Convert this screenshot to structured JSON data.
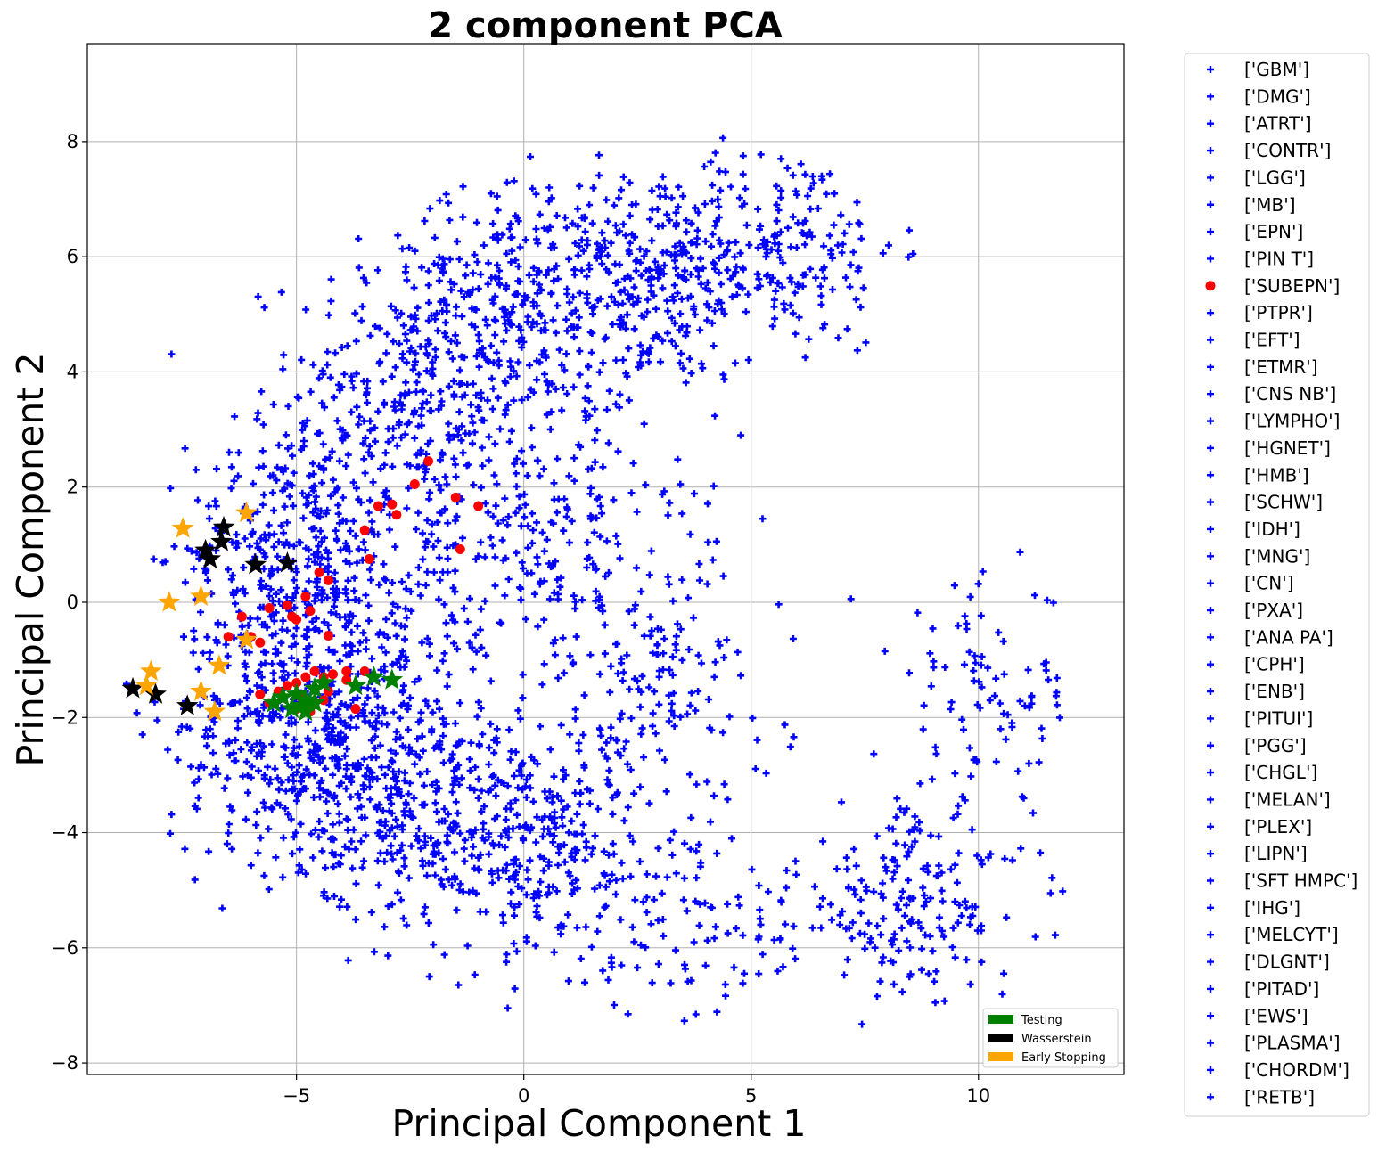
{
  "chart_data": {
    "type": "scatter",
    "title": "2 component PCA",
    "xlabel": "Principal Component 1",
    "ylabel": "Principal Component 2",
    "xlim": [
      -9.6,
      13.2
    ],
    "ylim": [
      -8.2,
      9.7
    ],
    "xticks": [
      -5,
      0,
      5,
      10
    ],
    "yticks": [
      -8,
      -6,
      -4,
      -2,
      0,
      2,
      4,
      6,
      8
    ],
    "xtick_labels": [
      "−5",
      "0",
      "5",
      "10"
    ],
    "ytick_labels": [
      "−8",
      "−6",
      "−4",
      "−2",
      "0",
      "2",
      "4",
      "6",
      "8"
    ],
    "grid": true,
    "background_points_approx_count": 3000,
    "background_series_color": "#0000ff",
    "colors": {
      "base": "#0000ff",
      "subepn": "#ff0000",
      "testing": "#008000",
      "wasserstein": "#000000",
      "early_stopping": "#ffa500"
    },
    "class_legend": {
      "placement": "outside-right",
      "entries": [
        {
          "label": "['GBM']",
          "marker": "plus",
          "color": "#0000ff"
        },
        {
          "label": "['DMG']",
          "marker": "plus",
          "color": "#0000ff"
        },
        {
          "label": "['ATRT']",
          "marker": "plus",
          "color": "#0000ff"
        },
        {
          "label": "['CONTR']",
          "marker": "plus",
          "color": "#0000ff"
        },
        {
          "label": "['LGG']",
          "marker": "plus",
          "color": "#0000ff"
        },
        {
          "label": "['MB']",
          "marker": "plus",
          "color": "#0000ff"
        },
        {
          "label": "['EPN']",
          "marker": "plus",
          "color": "#0000ff"
        },
        {
          "label": "['PIN T']",
          "marker": "plus",
          "color": "#0000ff"
        },
        {
          "label": "['SUBEPN']",
          "marker": "circle",
          "color": "#ff0000"
        },
        {
          "label": "['PTPR']",
          "marker": "plus",
          "color": "#0000ff"
        },
        {
          "label": "['EFT']",
          "marker": "plus",
          "color": "#0000ff"
        },
        {
          "label": "['ETMR']",
          "marker": "plus",
          "color": "#0000ff"
        },
        {
          "label": "['CNS NB']",
          "marker": "plus",
          "color": "#0000ff"
        },
        {
          "label": "['LYMPHO']",
          "marker": "plus",
          "color": "#0000ff"
        },
        {
          "label": "['HGNET']",
          "marker": "plus",
          "color": "#0000ff"
        },
        {
          "label": "['HMB']",
          "marker": "plus",
          "color": "#0000ff"
        },
        {
          "label": "['SCHW']",
          "marker": "plus",
          "color": "#0000ff"
        },
        {
          "label": "['IDH']",
          "marker": "plus",
          "color": "#0000ff"
        },
        {
          "label": "['MNG']",
          "marker": "plus",
          "color": "#0000ff"
        },
        {
          "label": "['CN']",
          "marker": "plus",
          "color": "#0000ff"
        },
        {
          "label": "['PXA']",
          "marker": "plus",
          "color": "#0000ff"
        },
        {
          "label": "['ANA PA']",
          "marker": "plus",
          "color": "#0000ff"
        },
        {
          "label": "['CPH']",
          "marker": "plus",
          "color": "#0000ff"
        },
        {
          "label": "['ENB']",
          "marker": "plus",
          "color": "#0000ff"
        },
        {
          "label": "['PITUI']",
          "marker": "plus",
          "color": "#0000ff"
        },
        {
          "label": "['PGG']",
          "marker": "plus",
          "color": "#0000ff"
        },
        {
          "label": "['CHGL']",
          "marker": "plus",
          "color": "#0000ff"
        },
        {
          "label": "['MELAN']",
          "marker": "plus",
          "color": "#0000ff"
        },
        {
          "label": "['PLEX']",
          "marker": "plus",
          "color": "#0000ff"
        },
        {
          "label": "['LIPN']",
          "marker": "plus",
          "color": "#0000ff"
        },
        {
          "label": "['SFT HMPC']",
          "marker": "plus",
          "color": "#0000ff"
        },
        {
          "label": "['IHG']",
          "marker": "plus",
          "color": "#0000ff"
        },
        {
          "label": "['MELCYT']",
          "marker": "plus",
          "color": "#0000ff"
        },
        {
          "label": "['DLGNT']",
          "marker": "plus",
          "color": "#0000ff"
        },
        {
          "label": "['PITAD']",
          "marker": "plus",
          "color": "#0000ff"
        },
        {
          "label": "['EWS']",
          "marker": "plus",
          "color": "#0000ff"
        },
        {
          "label": "['PLASMA']",
          "marker": "plus",
          "color": "#0000ff"
        },
        {
          "label": "['CHORDM']",
          "marker": "plus",
          "color": "#0000ff"
        },
        {
          "label": "['RETB']",
          "marker": "plus",
          "color": "#0000ff"
        }
      ]
    },
    "method_legend": {
      "placement": "lower-right",
      "entries": [
        {
          "label": "Testing",
          "color": "#008000"
        },
        {
          "label": "Wasserstein",
          "color": "#000000"
        },
        {
          "label": "Early Stopping",
          "color": "#ffa500"
        }
      ]
    },
    "subepn_points": [
      [
        -2.1,
        2.45
      ],
      [
        -2.4,
        2.05
      ],
      [
        -1.5,
        1.82
      ],
      [
        -1.0,
        1.67
      ],
      [
        -3.2,
        1.67
      ],
      [
        -2.9,
        1.7
      ],
      [
        -2.8,
        1.52
      ],
      [
        -3.5,
        1.25
      ],
      [
        -1.4,
        0.92
      ],
      [
        -3.4,
        0.75
      ],
      [
        -4.5,
        0.52
      ],
      [
        -4.3,
        0.38
      ],
      [
        -4.8,
        0.1
      ],
      [
        -5.2,
        -0.05
      ],
      [
        -4.7,
        -0.15
      ],
      [
        -5.6,
        -0.1
      ],
      [
        -5.1,
        -0.25
      ],
      [
        -5.0,
        -0.3
      ],
      [
        -6.2,
        -0.25
      ],
      [
        -6.0,
        -0.6
      ],
      [
        -6.5,
        -0.6
      ],
      [
        -4.3,
        -0.58
      ],
      [
        -5.8,
        -0.7
      ],
      [
        -3.5,
        -1.2
      ],
      [
        -3.9,
        -1.2
      ],
      [
        -4.2,
        -1.25
      ],
      [
        -4.4,
        -1.3
      ],
      [
        -4.6,
        -1.2
      ],
      [
        -3.9,
        -1.35
      ],
      [
        -4.8,
        -1.3
      ],
      [
        -5.0,
        -1.4
      ],
      [
        -5.2,
        -1.45
      ],
      [
        -4.6,
        -1.5
      ],
      [
        -4.3,
        -1.55
      ],
      [
        -5.4,
        -1.55
      ],
      [
        -5.8,
        -1.6
      ],
      [
        -4.9,
        -1.65
      ],
      [
        -4.4,
        -1.7
      ],
      [
        -5.6,
        -1.75
      ],
      [
        -3.7,
        -1.85
      ],
      [
        -5.0,
        -1.85
      ],
      [
        -4.7,
        -1.9
      ]
    ],
    "testing_points": [
      [
        -2.9,
        -1.35
      ],
      [
        -3.3,
        -1.3
      ],
      [
        -3.7,
        -1.45
      ],
      [
        -4.4,
        -1.4
      ],
      [
        -4.6,
        -1.5
      ],
      [
        -5.0,
        -1.6
      ],
      [
        -5.3,
        -1.65
      ],
      [
        -4.8,
        -1.7
      ],
      [
        -5.5,
        -1.75
      ],
      [
        -4.6,
        -1.75
      ],
      [
        -4.9,
        -1.8
      ],
      [
        -5.1,
        -1.85
      ],
      [
        -4.8,
        -1.9
      ]
    ],
    "wasserstein_points": [
      [
        -6.6,
        1.3
      ],
      [
        -6.65,
        1.05
      ],
      [
        -7.0,
        0.9
      ],
      [
        -6.9,
        0.75
      ],
      [
        -5.9,
        0.65
      ],
      [
        -5.2,
        0.68
      ],
      [
        -8.6,
        -1.5
      ],
      [
        -8.1,
        -1.6
      ],
      [
        -7.4,
        -1.8
      ]
    ],
    "early_stopping_points": [
      [
        -6.1,
        1.55
      ],
      [
        -7.5,
        1.28
      ],
      [
        -7.1,
        0.1
      ],
      [
        -7.8,
        0.0
      ],
      [
        -6.1,
        -0.65
      ],
      [
        -6.7,
        -1.1
      ],
      [
        -8.2,
        -1.2
      ],
      [
        -8.3,
        -1.45
      ],
      [
        -7.1,
        -1.55
      ],
      [
        -6.8,
        -1.9
      ]
    ]
  }
}
